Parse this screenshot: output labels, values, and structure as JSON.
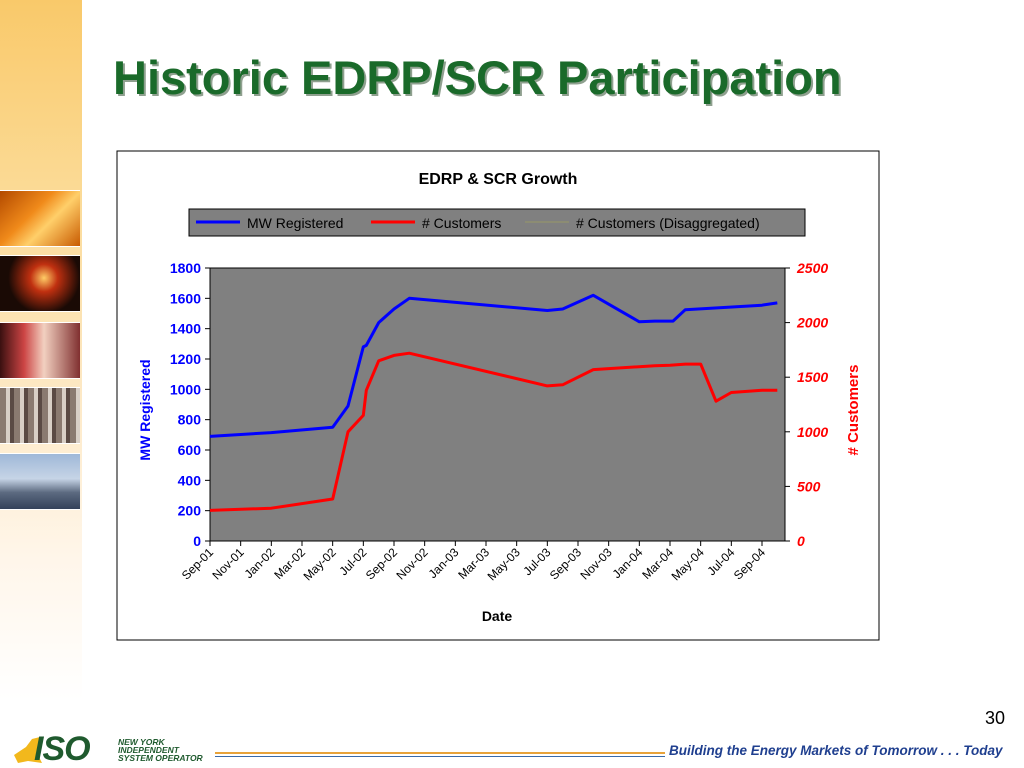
{
  "slide": {
    "title": "Historic EDRP/SCR Participation",
    "page_number": "30",
    "tagline": "Building the Energy Markets of Tomorrow . . . Today",
    "logo": {
      "mark": "ISO",
      "lines": [
        "NEW YORK",
        "INDEPENDENT",
        "SYSTEM OPERATOR"
      ]
    }
  },
  "colors": {
    "title": "#1a6a2a",
    "mw_series": "#0000ff",
    "customers_series": "#ff0000",
    "disagg_series": "#999966",
    "plot_bg": "#808080"
  },
  "chart_data": {
    "type": "line",
    "title": "EDRP & SCR Growth",
    "xlabel": "Date",
    "ylabel": "MW Registered",
    "y2label": "# Customers",
    "ylim": [
      0,
      1800
    ],
    "y2lim": [
      0,
      2500
    ],
    "yticks": [
      "0",
      "200",
      "400",
      "600",
      "800",
      "1000",
      "1200",
      "1400",
      "1600",
      "1800"
    ],
    "y2ticks": [
      "0",
      "500",
      "1000",
      "1500",
      "2000",
      "2500"
    ],
    "xticks": [
      "Sep-01",
      "Nov-01",
      "Jan-02",
      "Mar-02",
      "May-02",
      "Jul-02",
      "Sep-02",
      "Nov-02",
      "Jan-03",
      "Mar-03",
      "May-03",
      "Jul-03",
      "Sep-03",
      "Nov-03",
      "Jan-04",
      "Mar-04",
      "May-04",
      "Jul-04",
      "Sep-04"
    ],
    "grid": false,
    "legend_position": "top",
    "series": [
      {
        "name": "MW Registered",
        "axis": "left",
        "color": "#0000ff",
        "x": [
          "Sep-01",
          "Jan-02",
          "May-02",
          "Jun-02",
          "Jul-02",
          "Jul-02",
          "Aug-02",
          "Sep-02",
          "Oct-02",
          "Jul-03",
          "Aug-03",
          "Oct-03",
          "Jan-04",
          "Feb-04",
          "Mar-04",
          "Mar-04",
          "Apr-04",
          "Sep-04",
          "Oct-04"
        ],
        "values": [
          690,
          715,
          750,
          890,
          1280,
          1290,
          1440,
          1530,
          1600,
          1520,
          1530,
          1620,
          1445,
          1450,
          1450,
          1450,
          1525,
          1555,
          1570
        ]
      },
      {
        "name": "# Customers",
        "axis": "right",
        "color": "#ff0000",
        "x": [
          "Sep-01",
          "Jan-02",
          "May-02",
          "Jun-02",
          "Jul-02",
          "Jul-02",
          "Aug-02",
          "Sep-02",
          "Oct-02",
          "Jul-03",
          "Aug-03",
          "Oct-03",
          "Feb-04",
          "Mar-04",
          "Apr-04",
          "May-04",
          "Jun-04",
          "Jul-04",
          "Sep-04",
          "Oct-04"
        ],
        "values": [
          280,
          300,
          385,
          1000,
          1150,
          1380,
          1650,
          1700,
          1720,
          1420,
          1430,
          1570,
          1605,
          1610,
          1620,
          1620,
          1280,
          1360,
          1380,
          1380
        ]
      },
      {
        "name": "# Customers (Disaggregated)",
        "axis": "right",
        "color": "#999966",
        "x": [],
        "values": []
      }
    ]
  }
}
